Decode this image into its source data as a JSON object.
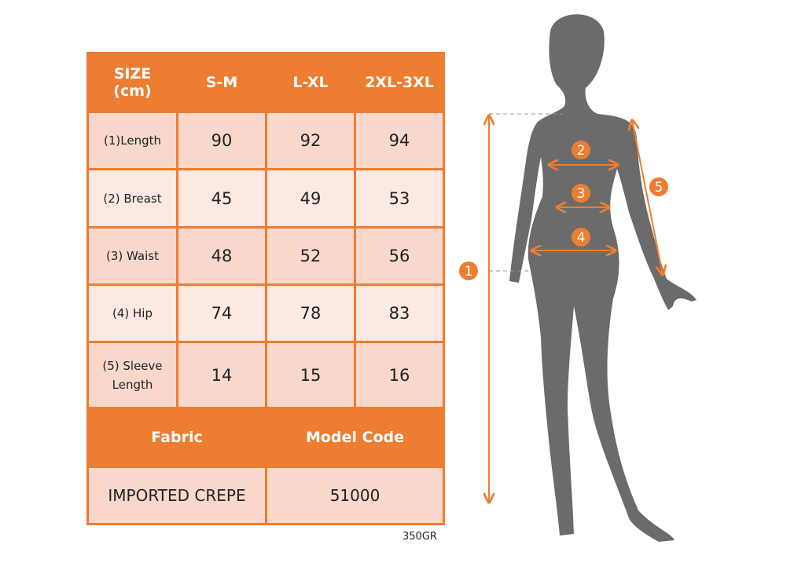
{
  "table": {
    "header": [
      "SIZE\n(cm)",
      "S-M",
      "L-XL",
      "2XL-3XL"
    ],
    "header_size_line1": "SIZE",
    "header_size_line2": "(cm)",
    "rows": [
      {
        "label": "(1)Length",
        "values": [
          "90",
          "92",
          "94"
        ]
      },
      {
        "label": "(2) Breast",
        "values": [
          "45",
          "49",
          "53"
        ]
      },
      {
        "label": "(3) Waist",
        "values": [
          "48",
          "52",
          "56"
        ]
      },
      {
        "label": "(4) Hip",
        "values": [
          "74",
          "78",
          "83"
        ]
      },
      {
        "label_line1": "(5) Sleeve",
        "label_line2": "Length",
        "values": [
          "14",
          "15",
          "16"
        ]
      }
    ],
    "footer_headers": [
      "Fabric",
      "Model Code"
    ],
    "footer_values": [
      "IMPORTED CREPE",
      "51000"
    ]
  },
  "weight_note": "350GR",
  "diagram": {
    "markers": [
      "1",
      "2",
      "3",
      "4",
      "5"
    ]
  },
  "colors": {
    "accent": "#ed7d31",
    "cell_dark": "#f8d8cb",
    "cell_light": "#fbe9e2",
    "silhouette": "#6b6b6b"
  }
}
